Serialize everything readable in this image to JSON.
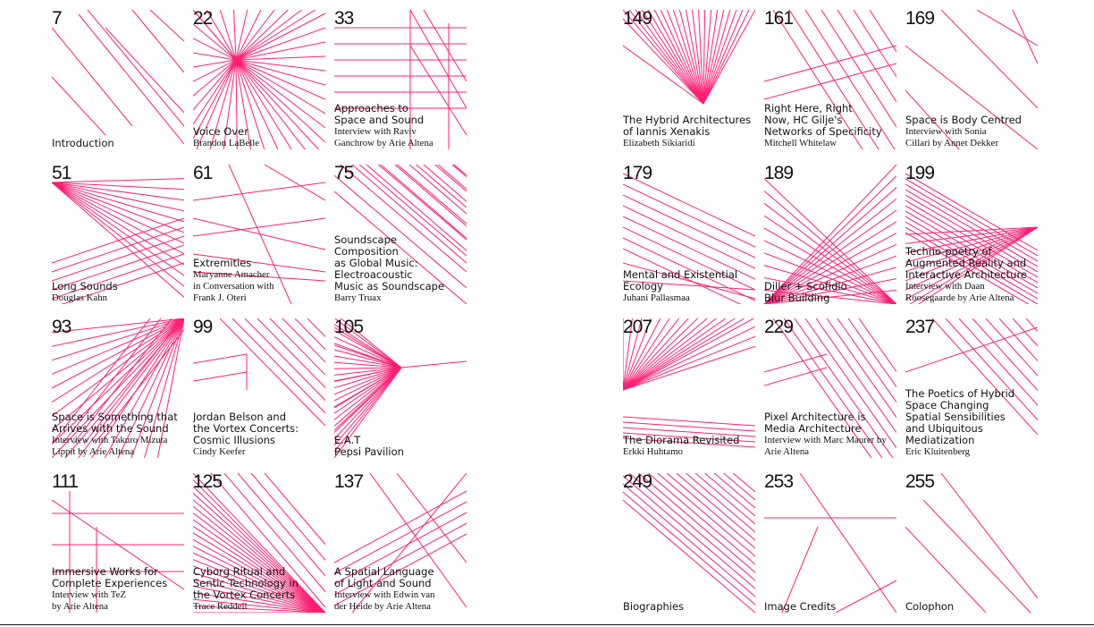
{
  "left": [
    {
      "num": "7",
      "title": "Introduction",
      "sub": ""
    },
    {
      "num": "22",
      "title": "Voice Over",
      "sub": "Brandon LaBelle"
    },
    {
      "num": "33",
      "title": "Approaches to\nSpace and Sound",
      "sub": "Interview with Raviv\nGanchrow by Arie Altena"
    },
    {
      "num": "51",
      "title": "Long Sounds",
      "sub": "Douglas Kahn"
    },
    {
      "num": "61",
      "title": "Extremities",
      "sub": "Maryanne Amacher\nin Conversation with\nFrank J. Oteri"
    },
    {
      "num": "75",
      "title": "Soundscape\nComposition\nas Global Music:\nElectroacoustic\nMusic as Soundscape",
      "sub": "Barry Truax"
    },
    {
      "num": "93",
      "title": "Space is Something that\nArrives with the Sound",
      "sub": "Interview with Takuro Mizuta\nLippit by Arie Altena"
    },
    {
      "num": "99",
      "title": "Jordan Belson and\nthe Vortex Concerts:\nCosmic Illusions",
      "sub": "Cindy Keefer"
    },
    {
      "num": "105",
      "title": "E.A.T\nPepsi Pavilion",
      "sub": ""
    },
    {
      "num": "111",
      "title": "Immersive Works for\nComplete Experiences",
      "sub": "Interview with TeZ\nby Arie Altena"
    },
    {
      "num": "125",
      "title": "Cyborg Ritual and\nSentic Technology in\nthe Vortex Concerts",
      "sub": "Trace Reddell"
    },
    {
      "num": "137",
      "title": "A Spatial Language\nof Light and Sound",
      "sub": "Interview with Edwin van\nder Heide by Arie Altena"
    }
  ],
  "right": [
    {
      "num": "149",
      "title": "The Hybrid Architectures\nof Iannis Xenakis",
      "sub": "Elizabeth Sikiaridi"
    },
    {
      "num": "161",
      "title": "Right Here, Right\nNow, HC Gilje's\nNetworks of Specificity",
      "sub": "Mitchell Whitelaw"
    },
    {
      "num": "169",
      "title": "Space is Body Centred",
      "sub": "Interview with Sonia\nCillari by Annet Dekker"
    },
    {
      "num": "179",
      "title": "Mental and Existential\nEcology",
      "sub": "Juhani Pallasmaa"
    },
    {
      "num": "189",
      "title": "Diller + Scofidio\nBlur Building",
      "sub": ""
    },
    {
      "num": "199",
      "title": "Techno-poetry of\nAugmented Reality and\nInteractive Architecture",
      "sub": "Interview with Daan\nRoosegaarde by Arie Altena"
    },
    {
      "num": "207",
      "title": "The Diorama Revisited",
      "sub": "Erkki Huhtamo"
    },
    {
      "num": "229",
      "title": "Pixel Architecture is\nMedia Architecture",
      "sub": "Interview with Marc Maurer by\nArie Altena"
    },
    {
      "num": "237",
      "title": "The Poetics of Hybrid\nSpace Changing\nSpatial Sensibilities\nand Ubiquitous\nMediatization",
      "sub": "Eric Kluitenberg"
    },
    {
      "num": "249",
      "title": "Biographies",
      "sub": ""
    },
    {
      "num": "253",
      "title": "Image Credits",
      "sub": ""
    },
    {
      "num": "255",
      "title": "Colophon",
      "sub": ""
    }
  ],
  "colors": {
    "accent": "#ff1f73",
    "text": "#111111"
  }
}
